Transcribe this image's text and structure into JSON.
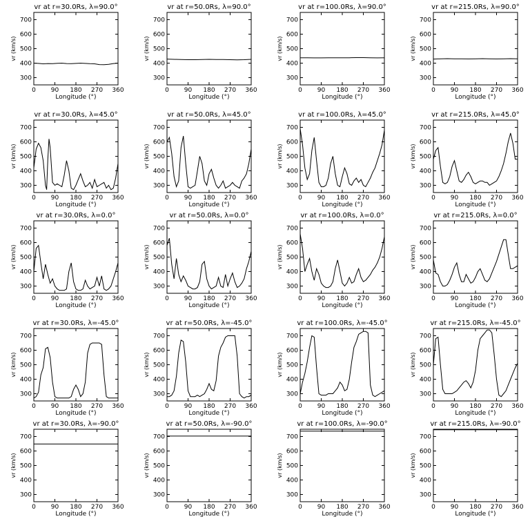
{
  "chart_data": [
    {
      "type": "line",
      "title": "vr at r=30.0Rs, λ=90.0°",
      "xlabel": "Longitude (°)",
      "ylabel": "vr (km/s)",
      "xlim": [
        0,
        360
      ],
      "ylim": [
        250,
        750
      ],
      "x": [
        0,
        20,
        40,
        60,
        80,
        100,
        120,
        140,
        160,
        180,
        200,
        220,
        240,
        260,
        280,
        300,
        320,
        340,
        360
      ],
      "y": [
        400,
        398,
        395,
        397,
        396,
        399,
        400,
        397,
        396,
        398,
        400,
        398,
        396,
        395,
        390,
        389,
        392,
        397,
        400
      ]
    },
    {
      "type": "line",
      "title": "vr at r=50.0Rs, λ=90.0°",
      "xlabel": "Longitude (°)",
      "ylabel": "vr (km/s)",
      "xlim": [
        0,
        360
      ],
      "ylim": [
        250,
        750
      ],
      "x": [
        0,
        30,
        60,
        90,
        120,
        150,
        180,
        210,
        240,
        270,
        300,
        330,
        360
      ],
      "y": [
        428,
        426,
        425,
        424,
        424,
        425,
        426,
        425,
        425,
        424,
        423,
        424,
        426
      ]
    },
    {
      "type": "line",
      "title": "vr at r=100.0Rs, λ=90.0°",
      "xlabel": "Longitude (°)",
      "ylabel": "vr (km/s)",
      "xlim": [
        0,
        360
      ],
      "ylim": [
        250,
        750
      ],
      "x": [
        0,
        30,
        60,
        90,
        120,
        150,
        180,
        210,
        240,
        270,
        300,
        330,
        360
      ],
      "y": [
        437,
        437,
        436,
        436,
        437,
        437,
        437,
        437,
        438,
        438,
        437,
        436,
        437
      ]
    },
    {
      "type": "line",
      "title": "vr at r=215.0Rs, λ=90.0°",
      "xlabel": "Longitude (°)",
      "ylabel": "vr (km/s)",
      "xlim": [
        0,
        360
      ],
      "ylim": [
        250,
        750
      ],
      "x": [
        0,
        30,
        60,
        90,
        120,
        150,
        180,
        210,
        240,
        270,
        300,
        330,
        360
      ],
      "y": [
        428,
        430,
        431,
        430,
        430,
        429,
        430,
        431,
        430,
        429,
        430,
        431,
        430
      ]
    },
    {
      "type": "line",
      "title": "vr at r=30.0Rs, λ=45.0°",
      "xlabel": "Longitude (°)",
      "ylabel": "vr (km/s)",
      "xlim": [
        0,
        360
      ],
      "ylim": [
        250,
        750
      ],
      "x": [
        0,
        10,
        20,
        30,
        40,
        50,
        55,
        60,
        65,
        70,
        80,
        90,
        100,
        110,
        120,
        130,
        140,
        150,
        160,
        170,
        180,
        190,
        200,
        210,
        220,
        230,
        240,
        250,
        260,
        270,
        280,
        290,
        300,
        310,
        320,
        330,
        340,
        350,
        360
      ],
      "y": [
        420,
        550,
        590,
        560,
        470,
        300,
        270,
        480,
        620,
        560,
        320,
        300,
        310,
        300,
        290,
        370,
        470,
        400,
        280,
        270,
        300,
        340,
        380,
        330,
        290,
        300,
        320,
        280,
        340,
        290,
        300,
        310,
        320,
        280,
        300,
        270,
        280,
        350,
        450
      ]
    },
    {
      "type": "line",
      "title": "vr at r=50.0Rs, λ=45.0°",
      "xlabel": "Longitude (°)",
      "ylabel": "vr (km/s)",
      "xlim": [
        0,
        360
      ],
      "ylim": [
        250,
        750
      ],
      "x": [
        0,
        10,
        20,
        30,
        40,
        50,
        60,
        70,
        80,
        90,
        100,
        110,
        120,
        130,
        140,
        150,
        160,
        170,
        180,
        190,
        200,
        210,
        220,
        230,
        240,
        250,
        260,
        270,
        280,
        290,
        300,
        310,
        320,
        330,
        340,
        350,
        360
      ],
      "y": [
        600,
        630,
        520,
        360,
        290,
        330,
        560,
        640,
        450,
        290,
        280,
        290,
        300,
        400,
        500,
        450,
        330,
        300,
        380,
        410,
        350,
        300,
        280,
        300,
        330,
        280,
        290,
        300,
        320,
        300,
        290,
        280,
        330,
        350,
        380,
        450,
        550
      ]
    },
    {
      "type": "line",
      "title": "vr at r=100.0Rs, λ=45.0°",
      "xlabel": "Longitude (°)",
      "ylabel": "vr (km/s)",
      "xlim": [
        0,
        360
      ],
      "ylim": [
        250,
        750
      ],
      "x": [
        0,
        10,
        20,
        30,
        40,
        50,
        60,
        70,
        80,
        90,
        100,
        110,
        120,
        130,
        140,
        150,
        160,
        170,
        180,
        190,
        200,
        210,
        220,
        230,
        240,
        250,
        260,
        270,
        280,
        290,
        300,
        310,
        320,
        330,
        340,
        350,
        360
      ],
      "y": [
        690,
        580,
        420,
        340,
        380,
        540,
        630,
        470,
        320,
        290,
        290,
        300,
        350,
        450,
        500,
        380,
        300,
        290,
        360,
        420,
        380,
        310,
        300,
        330,
        350,
        320,
        340,
        300,
        290,
        320,
        350,
        390,
        420,
        470,
        520,
        580,
        680
      ]
    },
    {
      "type": "line",
      "title": "vr at r=215.0Rs, λ=45.0°",
      "xlabel": "Longitude (°)",
      "ylabel": "vr (km/s)",
      "xlim": [
        0,
        360
      ],
      "ylim": [
        250,
        750
      ],
      "x": [
        0,
        10,
        20,
        30,
        40,
        50,
        60,
        70,
        80,
        90,
        100,
        110,
        120,
        130,
        140,
        150,
        160,
        170,
        180,
        190,
        200,
        210,
        220,
        230,
        240,
        250,
        260,
        270,
        280,
        290,
        300,
        310,
        320,
        330,
        340,
        350,
        360
      ],
      "y": [
        480,
        540,
        560,
        430,
        320,
        310,
        320,
        360,
        430,
        470,
        400,
        330,
        320,
        340,
        370,
        390,
        360,
        320,
        310,
        320,
        330,
        330,
        320,
        320,
        300,
        310,
        320,
        330,
        360,
        400,
        450,
        520,
        600,
        660,
        590,
        480,
        480
      ]
    },
    {
      "type": "line",
      "title": "vr at r=30.0Rs, λ=0.0°",
      "xlabel": "Longitude (°)",
      "ylabel": "vr (km/s)",
      "xlim": [
        0,
        360
      ],
      "ylim": [
        250,
        750
      ],
      "x": [
        0,
        10,
        20,
        30,
        40,
        50,
        60,
        70,
        80,
        90,
        100,
        110,
        120,
        130,
        140,
        150,
        160,
        170,
        180,
        190,
        200,
        210,
        220,
        230,
        240,
        250,
        260,
        270,
        280,
        290,
        300,
        310,
        320,
        330,
        340,
        350,
        360
      ],
      "y": [
        400,
        560,
        580,
        460,
        350,
        450,
        380,
        320,
        350,
        300,
        280,
        270,
        270,
        270,
        280,
        400,
        460,
        330,
        280,
        270,
        270,
        280,
        340,
        300,
        280,
        290,
        300,
        360,
        300,
        370,
        280,
        270,
        280,
        300,
        350,
        400,
        460
      ]
    },
    {
      "type": "line",
      "title": "vr at r=50.0Rs, λ=0.0°",
      "xlabel": "Longitude (°)",
      "ylabel": "vr (km/s)",
      "xlim": [
        0,
        360
      ],
      "ylim": [
        250,
        750
      ],
      "x": [
        0,
        10,
        20,
        30,
        40,
        50,
        60,
        70,
        80,
        90,
        100,
        110,
        120,
        130,
        140,
        150,
        160,
        170,
        180,
        190,
        200,
        210,
        220,
        230,
        240,
        250,
        260,
        270,
        280,
        290,
        300,
        310,
        320,
        330,
        340,
        350,
        360
      ],
      "y": [
        580,
        630,
        450,
        350,
        490,
        380,
        330,
        370,
        340,
        300,
        290,
        280,
        280,
        290,
        330,
        450,
        470,
        350,
        300,
        280,
        290,
        300,
        360,
        300,
        290,
        380,
        300,
        350,
        390,
        330,
        290,
        300,
        320,
        350,
        420,
        470,
        540
      ]
    },
    {
      "type": "line",
      "title": "vr at r=100.0Rs, λ=0.0°",
      "xlabel": "Longitude (°)",
      "ylabel": "vr (km/s)",
      "xlim": [
        0,
        360
      ],
      "ylim": [
        250,
        750
      ],
      "x": [
        0,
        10,
        20,
        30,
        40,
        50,
        60,
        70,
        80,
        90,
        100,
        110,
        120,
        130,
        140,
        150,
        160,
        170,
        180,
        190,
        200,
        210,
        220,
        230,
        240,
        250,
        260,
        270,
        280,
        290,
        300,
        310,
        320,
        330,
        340,
        350,
        360
      ],
      "y": [
        660,
        560,
        400,
        450,
        490,
        400,
        340,
        420,
        380,
        320,
        300,
        290,
        290,
        300,
        330,
        420,
        480,
        400,
        320,
        300,
        320,
        360,
        320,
        330,
        380,
        420,
        360,
        330,
        340,
        360,
        380,
        410,
        430,
        460,
        500,
        560,
        640
      ]
    },
    {
      "type": "line",
      "title": "vr at r=215.0Rs, λ=0.0°",
      "xlabel": "Longitude (°)",
      "ylabel": "vr (km/s)",
      "xlim": [
        0,
        360
      ],
      "ylim": [
        250,
        750
      ],
      "x": [
        0,
        10,
        20,
        30,
        40,
        50,
        60,
        70,
        80,
        90,
        100,
        110,
        120,
        130,
        140,
        150,
        160,
        170,
        180,
        190,
        200,
        210,
        220,
        230,
        240,
        250,
        260,
        270,
        280,
        290,
        300,
        310,
        320,
        330,
        340,
        350,
        360
      ],
      "y": [
        480,
        390,
        380,
        330,
        300,
        300,
        310,
        340,
        380,
        430,
        460,
        380,
        330,
        330,
        380,
        350,
        320,
        330,
        360,
        400,
        420,
        380,
        340,
        330,
        350,
        390,
        430,
        470,
        520,
        570,
        620,
        620,
        520,
        420,
        420,
        430,
        440
      ]
    },
    {
      "type": "line",
      "title": "vr at r=30.0Rs, λ=-45.0°",
      "xlabel": "Longitude (°)",
      "ylabel": "vr (km/s)",
      "xlim": [
        0,
        360
      ],
      "ylim": [
        250,
        750
      ],
      "x": [
        0,
        10,
        20,
        30,
        40,
        50,
        60,
        70,
        80,
        90,
        100,
        110,
        120,
        130,
        140,
        150,
        160,
        170,
        180,
        190,
        200,
        210,
        220,
        230,
        240,
        250,
        260,
        270,
        280,
        290,
        300,
        310,
        320,
        330,
        340,
        350,
        360
      ],
      "y": [
        270,
        280,
        310,
        430,
        480,
        610,
        620,
        550,
        380,
        280,
        270,
        270,
        270,
        270,
        270,
        270,
        280,
        330,
        360,
        330,
        280,
        300,
        380,
        580,
        640,
        650,
        650,
        650,
        650,
        640,
        430,
        280,
        270,
        270,
        270,
        270,
        270
      ]
    },
    {
      "type": "line",
      "title": "vr at r=50.0Rs, λ=-45.0°",
      "xlabel": "Longitude (°)",
      "ylabel": "vr (km/s)",
      "xlim": [
        0,
        360
      ],
      "ylim": [
        250,
        750
      ],
      "x": [
        0,
        10,
        20,
        30,
        40,
        50,
        60,
        70,
        80,
        90,
        100,
        110,
        120,
        130,
        140,
        150,
        160,
        170,
        180,
        190,
        200,
        210,
        220,
        230,
        240,
        250,
        260,
        270,
        280,
        290,
        300,
        310,
        320,
        330,
        340,
        350,
        360
      ],
      "y": [
        280,
        280,
        290,
        320,
        420,
        580,
        670,
        660,
        520,
        320,
        280,
        280,
        280,
        290,
        280,
        290,
        300,
        330,
        370,
        330,
        320,
        390,
        560,
        620,
        650,
        690,
        700,
        700,
        700,
        700,
        560,
        300,
        280,
        270,
        280,
        280,
        290
      ]
    },
    {
      "type": "line",
      "title": "vr at r=100.0Rs, λ=-45.0°",
      "xlabel": "Longitude (°)",
      "ylabel": "vr (km/s)",
      "xlim": [
        0,
        360
      ],
      "ylim": [
        250,
        750
      ],
      "x": [
        0,
        10,
        20,
        30,
        40,
        50,
        60,
        70,
        80,
        90,
        100,
        110,
        120,
        130,
        140,
        150,
        160,
        170,
        180,
        190,
        200,
        210,
        220,
        230,
        240,
        250,
        260,
        270,
        280,
        290,
        300,
        310,
        320,
        330,
        340,
        350,
        360
      ],
      "y": [
        300,
        380,
        440,
        520,
        620,
        700,
        690,
        480,
        300,
        290,
        290,
        290,
        300,
        300,
        300,
        320,
        340,
        380,
        360,
        320,
        330,
        400,
        520,
        620,
        660,
        710,
        720,
        730,
        730,
        720,
        360,
        290,
        280,
        290,
        300,
        310,
        320
      ]
    },
    {
      "type": "line",
      "title": "vr at r=215.0Rs, λ=-45.0°",
      "xlabel": "Longitude (°)",
      "ylabel": "vr (km/s)",
      "xlim": [
        0,
        360
      ],
      "ylim": [
        250,
        750
      ],
      "x": [
        0,
        10,
        20,
        30,
        40,
        50,
        60,
        70,
        80,
        90,
        100,
        110,
        120,
        130,
        140,
        150,
        160,
        170,
        180,
        190,
        200,
        210,
        220,
        230,
        240,
        250,
        260,
        270,
        280,
        290,
        300,
        310,
        320,
        330,
        340,
        350,
        360
      ],
      "y": [
        500,
        680,
        690,
        500,
        330,
        300,
        300,
        300,
        300,
        310,
        320,
        340,
        360,
        380,
        390,
        370,
        340,
        380,
        460,
        600,
        680,
        700,
        720,
        740,
        740,
        720,
        570,
        400,
        290,
        280,
        300,
        320,
        360,
        400,
        440,
        480,
        510
      ]
    },
    {
      "type": "line",
      "title": "vr at r=30.0Rs, λ=-90.0°",
      "xlabel": "Longitude (°)",
      "ylabel": "vr (km/s)",
      "xlim": [
        0,
        360
      ],
      "ylim": [
        250,
        750
      ],
      "x": [
        0,
        360
      ],
      "y": [
        648,
        648
      ]
    },
    {
      "type": "line",
      "title": "vr at r=50.0Rs, λ=-90.0°",
      "xlabel": "Longitude (°)",
      "ylabel": "vr (km/s)",
      "xlim": [
        0,
        360
      ],
      "ylim": [
        250,
        750
      ],
      "x": [
        0,
        360
      ],
      "y": [
        703,
        703
      ]
    },
    {
      "type": "line",
      "title": "vr at r=100.0Rs, λ=-90.0°",
      "xlabel": "Longitude (°)",
      "ylabel": "vr (km/s)",
      "xlim": [
        0,
        360
      ],
      "ylim": [
        250,
        750
      ],
      "x": [
        0,
        360
      ],
      "y": [
        737,
        737
      ]
    },
    {
      "type": "line",
      "title": "vr at r=215.0Rs, λ=-90.0°",
      "xlabel": "Longitude (°)",
      "ylabel": "vr (km/s)",
      "xlim": [
        0,
        360
      ],
      "ylim": [
        250,
        750
      ],
      "x": [
        0,
        360
      ],
      "y": [
        746,
        746
      ]
    }
  ],
  "axes": {
    "x_ticks": [
      0,
      90,
      180,
      270,
      360
    ],
    "y_ticks": [
      300,
      400,
      500,
      600,
      700
    ],
    "x_tick_labels": [
      "0",
      "90",
      "180",
      "270",
      "360"
    ],
    "y_tick_labels": [
      "300",
      "400",
      "500",
      "600",
      "700"
    ],
    "xlabel": "Longitude (°)",
    "ylabel": "vr (km/s)"
  },
  "colors": {
    "line": "#000000",
    "background": "#ffffff"
  }
}
